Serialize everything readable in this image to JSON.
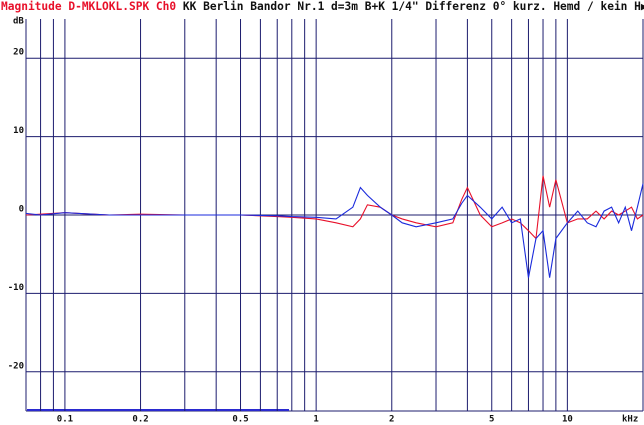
{
  "chart_data": {
    "type": "line",
    "title": "Magnitude D-MKLOKL.SPK Ch0",
    "subtitle": "KK Berlin Bandor Nr.1 d=3m B+K 1/4\" Differenz 0° kurz. Hemd / kein H▶",
    "y_label": "dB",
    "x_label": "kHz",
    "x_log": true,
    "grid": true,
    "xlim": [
      0.07,
      20
    ],
    "ylim": [
      -25,
      25
    ],
    "xticks": [
      0.1,
      0.2,
      0.5,
      1,
      2,
      5,
      10
    ],
    "x_minor_grid": [
      0.08,
      0.09,
      0.3,
      0.4,
      0.6,
      0.7,
      0.8,
      0.9,
      3,
      4,
      6,
      7,
      8,
      9,
      20
    ],
    "yticks": [
      -20,
      -10,
      0,
      10,
      20
    ],
    "x": [
      0.07,
      0.08,
      0.1,
      0.15,
      0.2,
      0.3,
      0.5,
      0.7,
      0.8,
      1,
      1.2,
      1.4,
      1.5,
      1.6,
      1.8,
      2,
      2.2,
      2.5,
      3,
      3.5,
      3.8,
      4,
      4.5,
      5,
      5.5,
      6,
      6.5,
      7,
      7.5,
      8,
      8.5,
      9,
      10,
      11,
      12,
      13,
      14,
      15,
      16,
      17,
      18,
      19,
      20
    ],
    "series": [
      {
        "name": "Red",
        "color": "#e8102a",
        "values": [
          0,
          0.1,
          0.3,
          0,
          0.1,
          0,
          0,
          -0.2,
          -0.3,
          -0.5,
          -1,
          -1.5,
          -0.5,
          1.3,
          1,
          0,
          -0.5,
          -1,
          -1.5,
          -1,
          2,
          3.5,
          0,
          -1.5,
          -1,
          -0.5,
          -1,
          -2,
          -3,
          5,
          1,
          4.5,
          -1,
          -0.5,
          -0.5,
          0.5,
          -0.5,
          0.5,
          0,
          0.5,
          1,
          -0.5,
          0
        ]
      },
      {
        "name": "Blue",
        "color": "#1a2adc",
        "values": [
          0.2,
          0,
          0.3,
          0,
          0,
          0,
          0,
          -0.1,
          -0.2,
          -0.3,
          -0.5,
          1,
          3.5,
          2.5,
          1,
          0,
          -1,
          -1.5,
          -1,
          -0.5,
          1.5,
          2.5,
          1,
          -0.5,
          1,
          -1,
          -0.5,
          -8,
          -3,
          -2,
          -8,
          -3,
          -1,
          0.5,
          -1,
          -1.5,
          0.5,
          1,
          -1,
          1,
          -2,
          1,
          4
        ]
      }
    ]
  }
}
